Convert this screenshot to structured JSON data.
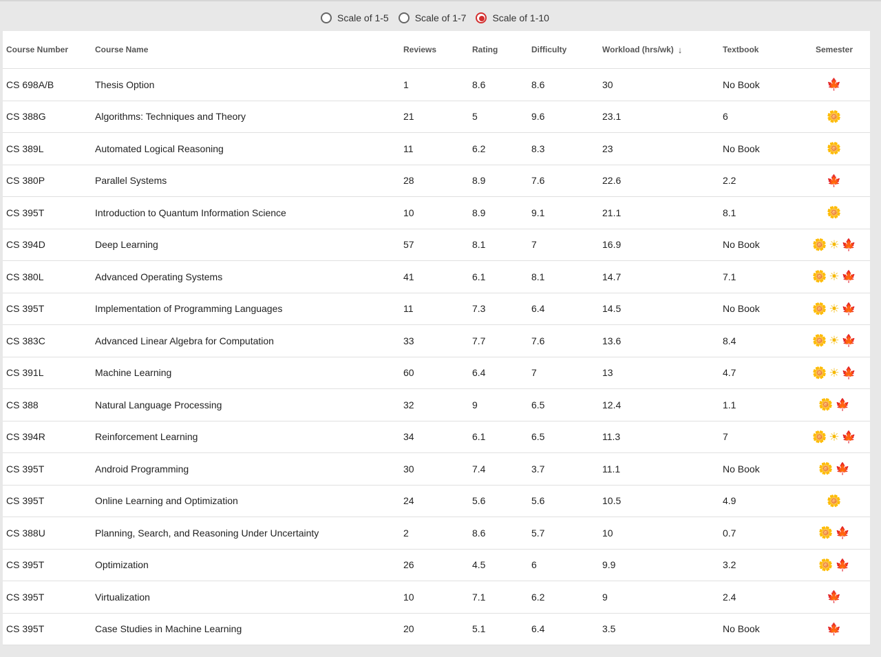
{
  "scale_options": [
    {
      "label": "Scale of 1-5",
      "checked": false
    },
    {
      "label": "Scale of 1-7",
      "checked": false
    },
    {
      "label": "Scale of 1-10",
      "checked": true
    }
  ],
  "table": {
    "headers": {
      "course_number": "Course Number",
      "course_name": "Course Name",
      "reviews": "Reviews",
      "rating": "Rating",
      "difficulty": "Difficulty",
      "workload": "Workload (hrs/wk)",
      "textbook": "Textbook",
      "semester": "Semester"
    },
    "sort_icon": "arrow-down-icon",
    "semester_icons": {
      "spring": "flower-icon",
      "summer": "sun-icon",
      "fall": "maple-leaf-icon"
    },
    "rows": [
      {
        "number": "CS 698A/B",
        "name": "Thesis Option",
        "reviews": "1",
        "rating": "8.6",
        "difficulty": "8.6",
        "workload": "30",
        "textbook": "No Book",
        "semesters": [
          "fall"
        ]
      },
      {
        "number": "CS 388G",
        "name": "Algorithms: Techniques and Theory",
        "reviews": "21",
        "rating": "5",
        "difficulty": "9.6",
        "workload": "23.1",
        "textbook": "6",
        "semesters": [
          "spring"
        ]
      },
      {
        "number": "CS 389L",
        "name": "Automated Logical Reasoning",
        "reviews": "11",
        "rating": "6.2",
        "difficulty": "8.3",
        "workload": "23",
        "textbook": "No Book",
        "semesters": [
          "spring"
        ]
      },
      {
        "number": "CS 380P",
        "name": "Parallel Systems",
        "reviews": "28",
        "rating": "8.9",
        "difficulty": "7.6",
        "workload": "22.6",
        "textbook": "2.2",
        "semesters": [
          "fall"
        ]
      },
      {
        "number": "CS 395T",
        "name": "Introduction to Quantum Information Science",
        "reviews": "10",
        "rating": "8.9",
        "difficulty": "9.1",
        "workload": "21.1",
        "textbook": "8.1",
        "semesters": [
          "spring"
        ]
      },
      {
        "number": "CS 394D",
        "name": "Deep Learning",
        "reviews": "57",
        "rating": "8.1",
        "difficulty": "7",
        "workload": "16.9",
        "textbook": "No Book",
        "semesters": [
          "spring",
          "summer",
          "fall"
        ]
      },
      {
        "number": "CS 380L",
        "name": "Advanced Operating Systems",
        "reviews": "41",
        "rating": "6.1",
        "difficulty": "8.1",
        "workload": "14.7",
        "textbook": "7.1",
        "semesters": [
          "spring",
          "summer",
          "fall"
        ]
      },
      {
        "number": "CS 395T",
        "name": "Implementation of Programming Languages",
        "reviews": "11",
        "rating": "7.3",
        "difficulty": "6.4",
        "workload": "14.5",
        "textbook": "No Book",
        "semesters": [
          "spring",
          "summer",
          "fall"
        ]
      },
      {
        "number": "CS 383C",
        "name": "Advanced Linear Algebra for Computation",
        "reviews": "33",
        "rating": "7.7",
        "difficulty": "7.6",
        "workload": "13.6",
        "textbook": "8.4",
        "semesters": [
          "spring",
          "summer",
          "fall"
        ]
      },
      {
        "number": "CS 391L",
        "name": "Machine Learning",
        "reviews": "60",
        "rating": "6.4",
        "difficulty": "7",
        "workload": "13",
        "textbook": "4.7",
        "semesters": [
          "spring",
          "summer",
          "fall"
        ]
      },
      {
        "number": "CS 388",
        "name": "Natural Language Processing",
        "reviews": "32",
        "rating": "9",
        "difficulty": "6.5",
        "workload": "12.4",
        "textbook": "1.1",
        "semesters": [
          "spring",
          "fall"
        ]
      },
      {
        "number": "CS 394R",
        "name": "Reinforcement Learning",
        "reviews": "34",
        "rating": "6.1",
        "difficulty": "6.5",
        "workload": "11.3",
        "textbook": "7",
        "semesters": [
          "spring",
          "summer",
          "fall"
        ]
      },
      {
        "number": "CS 395T",
        "name": "Android Programming",
        "reviews": "30",
        "rating": "7.4",
        "difficulty": "3.7",
        "workload": "11.1",
        "textbook": "No Book",
        "semesters": [
          "spring",
          "fall"
        ]
      },
      {
        "number": "CS 395T",
        "name": "Online Learning and Optimization",
        "reviews": "24",
        "rating": "5.6",
        "difficulty": "5.6",
        "workload": "10.5",
        "textbook": "4.9",
        "semesters": [
          "spring"
        ]
      },
      {
        "number": "CS 388U",
        "name": "Planning, Search, and Reasoning Under Uncertainty",
        "reviews": "2",
        "rating": "8.6",
        "difficulty": "5.7",
        "workload": "10",
        "textbook": "0.7",
        "semesters": [
          "spring",
          "fall"
        ]
      },
      {
        "number": "CS 395T",
        "name": "Optimization",
        "reviews": "26",
        "rating": "4.5",
        "difficulty": "6",
        "workload": "9.9",
        "textbook": "3.2",
        "semesters": [
          "spring",
          "fall"
        ]
      },
      {
        "number": "CS 395T",
        "name": "Virtualization",
        "reviews": "10",
        "rating": "7.1",
        "difficulty": "6.2",
        "workload": "9",
        "textbook": "2.4",
        "semesters": [
          "fall"
        ]
      },
      {
        "number": "CS 395T",
        "name": "Case Studies in Machine Learning",
        "reviews": "20",
        "rating": "5.1",
        "difficulty": "6.4",
        "workload": "3.5",
        "textbook": "No Book",
        "semesters": [
          "fall"
        ]
      }
    ]
  }
}
